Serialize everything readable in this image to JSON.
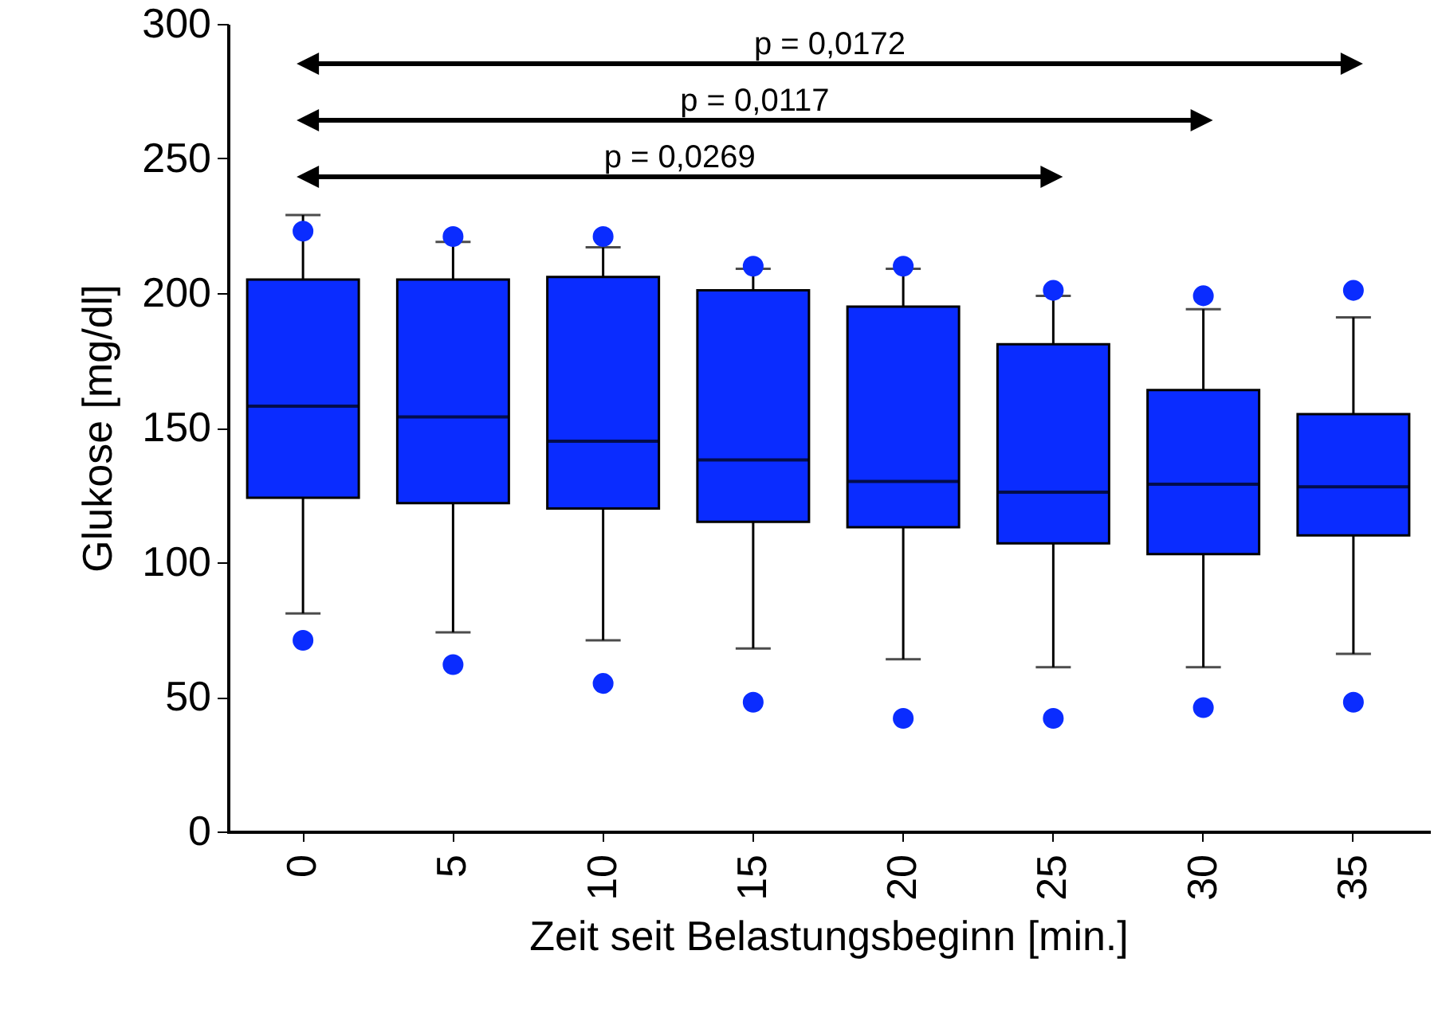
{
  "chart_data": {
    "type": "box",
    "xlabel": "Zeit seit Belastungsbeginn [min.]",
    "ylabel": "Glukose [mg/dl]",
    "categories": [
      "0",
      "5",
      "10",
      "15",
      "20",
      "25",
      "30",
      "35"
    ],
    "ylim": [
      0,
      300
    ],
    "yticks": [
      0,
      50,
      100,
      150,
      200,
      250,
      300
    ],
    "series": [
      {
        "color": "#0a2cff",
        "boxes": [
          {
            "low": 81,
            "q1": 124,
            "median": 158,
            "q3": 205,
            "high": 229,
            "outliers": [
              223,
              71
            ]
          },
          {
            "low": 74,
            "q1": 122,
            "median": 154,
            "q3": 205,
            "high": 219,
            "outliers": [
              221,
              62
            ]
          },
          {
            "low": 71,
            "q1": 120,
            "median": 145,
            "q3": 206,
            "high": 217,
            "outliers": [
              221,
              55
            ]
          },
          {
            "low": 68,
            "q1": 115,
            "median": 138,
            "q3": 201,
            "high": 209,
            "outliers": [
              210,
              48
            ]
          },
          {
            "low": 64,
            "q1": 113,
            "median": 130,
            "q3": 195,
            "high": 209,
            "outliers": [
              210,
              42
            ]
          },
          {
            "low": 61,
            "q1": 107,
            "median": 126,
            "q3": 181,
            "high": 199,
            "outliers": [
              201,
              42
            ]
          },
          {
            "low": 61,
            "q1": 103,
            "median": 129,
            "q3": 164,
            "high": 194,
            "outliers": [
              199,
              46
            ]
          },
          {
            "low": 66,
            "q1": 110,
            "median": 128,
            "q3": 155,
            "high": 191,
            "outliers": [
              201,
              48
            ]
          }
        ]
      }
    ],
    "annotations": [
      "p = 0,0172",
      "p = 0,0117",
      "p = 0,0269"
    ]
  }
}
